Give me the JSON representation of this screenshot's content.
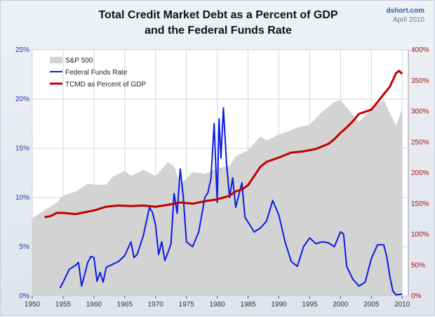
{
  "header": {
    "title_line1": "Total Credit Market Debt as a Percent of GDP",
    "title_line2": "and the Federal Funds Rate",
    "source": "dshort.com",
    "date": "April 2010"
  },
  "colors": {
    "sp500": "#d3d3d3",
    "fed_funds": "#0a1ae6",
    "tcmd": "#c00000",
    "left_axis": "#2233aa",
    "right_axis": "#aa1111"
  },
  "chart_data": {
    "type": "line",
    "title": "Total Credit Market Debt as a Percent of GDP and the Federal Funds Rate",
    "x_ticks": [
      "1950",
      "1955",
      "1960",
      "1965",
      "1970",
      "1975",
      "1980",
      "1985",
      "1990",
      "1995",
      "2000",
      "2005",
      "2010"
    ],
    "xlim": [
      1950,
      2011
    ],
    "y_left_ticks": [
      "0%",
      "5%",
      "10%",
      "15%",
      "20%",
      "25%"
    ],
    "ylim_left": [
      0,
      25
    ],
    "y_right_ticks": [
      "0%",
      "50%",
      "100%",
      "150%",
      "200%",
      "250%",
      "300%",
      "350%",
      "400%"
    ],
    "ylim_right": [
      0,
      400
    ],
    "grid": true,
    "legend_position": "top-left",
    "legend": [
      "S&P 500",
      "Federal Funds Rate",
      "TCMD as Percent of GDP"
    ],
    "series": [
      {
        "name": "S&P 500",
        "axis": "left",
        "style": "area",
        "x": [
          1950,
          1952,
          1954,
          1955,
          1957,
          1959,
          1960,
          1962,
          1963,
          1965,
          1966,
          1968,
          1970,
          1972,
          1973,
          1974,
          1975,
          1976,
          1978,
          1980,
          1982,
          1983,
          1985,
          1987,
          1988,
          1990,
          1991,
          1993,
          1995,
          1997,
          1999,
          2000,
          2002,
          2003,
          2005,
          2007,
          2008,
          2009,
          2010
        ],
        "y": [
          7.9,
          8.7,
          9.5,
          10.2,
          10.6,
          11.4,
          11.3,
          11.3,
          12.1,
          12.7,
          12.2,
          12.8,
          12.2,
          13.6,
          13.2,
          11.4,
          11.9,
          12.6,
          12.4,
          13.0,
          13.2,
          14.2,
          14.8,
          16.2,
          15.8,
          16.4,
          16.6,
          17.1,
          17.4,
          18.7,
          19.7,
          19.9,
          18.4,
          17.7,
          19.0,
          19.9,
          18.6,
          17.3,
          19.0
        ]
      },
      {
        "name": "Federal Funds Rate",
        "axis": "left",
        "style": "line",
        "x": [
          1954.5,
          1955,
          1956,
          1957,
          1957.5,
          1958,
          1958.5,
          1959,
          1959.5,
          1960,
          1960.5,
          1961,
          1961.5,
          1962,
          1963,
          1964,
          1965,
          1966,
          1966.5,
          1967,
          1968,
          1969,
          1969.5,
          1970,
          1970.5,
          1971,
          1971.5,
          1972,
          1972.5,
          1973,
          1973.5,
          1974,
          1974.5,
          1975,
          1976,
          1977,
          1978,
          1978.5,
          1979,
          1979.5,
          1980,
          1980.3,
          1980.6,
          1981,
          1981.5,
          1982,
          1982.5,
          1983,
          1984,
          1984.5,
          1985,
          1986,
          1987,
          1988,
          1989,
          1990,
          1991,
          1992,
          1993,
          1994,
          1995,
          1996,
          1997,
          1998,
          1999,
          2000,
          2000.5,
          2001,
          2002,
          2003,
          2004,
          2005,
          2006,
          2007,
          2007.5,
          2008,
          2008.5,
          2009,
          2010
        ],
        "y": [
          0.8,
          1.4,
          2.7,
          3.1,
          3.4,
          1.0,
          2.2,
          3.4,
          4.0,
          3.9,
          1.5,
          2.4,
          1.4,
          2.9,
          3.2,
          3.5,
          4.1,
          5.5,
          3.9,
          4.2,
          6.1,
          9.0,
          8.5,
          7.2,
          4.2,
          5.5,
          3.6,
          4.4,
          5.3,
          10.4,
          8.4,
          12.9,
          10.0,
          5.5,
          5.0,
          6.5,
          10.0,
          10.5,
          12.0,
          17.5,
          9.5,
          18.0,
          14.0,
          19.1,
          13.5,
          10.0,
          12.0,
          9.0,
          11.5,
          8.0,
          7.5,
          6.5,
          6.9,
          7.6,
          9.7,
          8.2,
          5.5,
          3.5,
          3.0,
          5.0,
          5.9,
          5.3,
          5.5,
          5.4,
          5.0,
          6.5,
          6.3,
          3.0,
          1.7,
          1.0,
          1.4,
          3.8,
          5.2,
          5.2,
          4.0,
          2.0,
          0.5,
          0.1,
          0.2
        ]
      },
      {
        "name": "TCMD as Percent of GDP",
        "axis": "right",
        "style": "line",
        "x": [
          1952,
          1953,
          1954,
          1955,
          1957,
          1959,
          1960,
          1962,
          1964,
          1966,
          1968,
          1970,
          1972,
          1974,
          1976,
          1978,
          1980,
          1982,
          1983,
          1984,
          1985,
          1986,
          1987,
          1988,
          1990,
          1992,
          1994,
          1996,
          1998,
          1999,
          2000,
          2001,
          2002,
          2003,
          2005,
          2006,
          2007,
          2008,
          2009,
          2009.5,
          2010
        ],
        "y": [
          128,
          130,
          135,
          135,
          133,
          137,
          139,
          145,
          147,
          146,
          147,
          145,
          148,
          152,
          150,
          154,
          157,
          163,
          170,
          173,
          180,
          195,
          210,
          218,
          225,
          233,
          235,
          239,
          247,
          255,
          265,
          274,
          284,
          296,
          303,
          315,
          328,
          340,
          362,
          366,
          361
        ]
      }
    ]
  }
}
